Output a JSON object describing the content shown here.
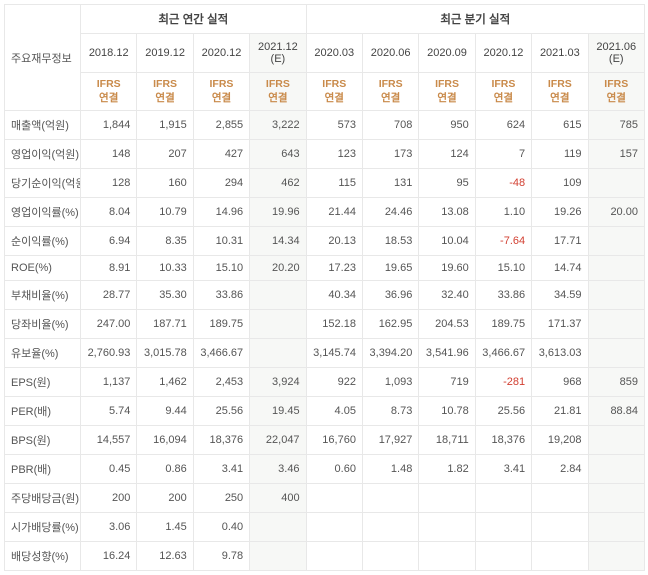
{
  "headers": {
    "rowLabel": "주요재무정보",
    "annual": "최근 연간 실적",
    "quarterly": "최근 분기 실적",
    "ifrs": "IFRS\n연결"
  },
  "periods": {
    "annual": [
      "2018.12",
      "2019.12",
      "2020.12",
      "2021.12 (E)"
    ],
    "quarterly": [
      "2020.03",
      "2020.06",
      "2020.09",
      "2020.12",
      "2021.03",
      "2021.06 (E)"
    ]
  },
  "estimateCols": [
    3,
    9
  ],
  "colors": {
    "ifrs": "#c98a4a",
    "negative": "#d23f31",
    "border": "#e8e8e8",
    "text": "#555555",
    "estBg": "#f7f8f6"
  },
  "typography": {
    "body_fontsize": 11,
    "ifrs_fontsize": 10.5,
    "header_fontsize": 11.5
  },
  "rows": [
    {
      "label": "매출액(억원)",
      "v": [
        "1,844",
        "1,915",
        "2,855",
        "3,222",
        "573",
        "708",
        "950",
        "624",
        "615",
        "785"
      ]
    },
    {
      "label": "영업이익(억원)",
      "v": [
        "148",
        "207",
        "427",
        "643",
        "123",
        "173",
        "124",
        "7",
        "119",
        "157"
      ]
    },
    {
      "label": "당기순이익(억원)",
      "v": [
        "128",
        "160",
        "294",
        "462",
        "115",
        "131",
        "95",
        "-48",
        "109",
        ""
      ]
    },
    {
      "label": "영업이익률(%)",
      "v": [
        "8.04",
        "10.79",
        "14.96",
        "19.96",
        "21.44",
        "24.46",
        "13.08",
        "1.10",
        "19.26",
        "20.00"
      ]
    },
    {
      "label": "순이익률(%)",
      "v": [
        "6.94",
        "8.35",
        "10.31",
        "14.34",
        "20.13",
        "18.53",
        "10.04",
        "-7.64",
        "17.71",
        ""
      ]
    },
    {
      "label": "ROE(%)",
      "v": [
        "8.91",
        "10.33",
        "15.10",
        "20.20",
        "17.23",
        "19.65",
        "19.60",
        "15.10",
        "14.74",
        ""
      ]
    },
    {
      "label": "부채비율(%)",
      "v": [
        "28.77",
        "35.30",
        "33.86",
        "",
        "40.34",
        "36.96",
        "32.40",
        "33.86",
        "34.59",
        ""
      ]
    },
    {
      "label": "당좌비율(%)",
      "v": [
        "247.00",
        "187.71",
        "189.75",
        "",
        "152.18",
        "162.95",
        "204.53",
        "189.75",
        "171.37",
        ""
      ]
    },
    {
      "label": "유보율(%)",
      "v": [
        "2,760.93",
        "3,015.78",
        "3,466.67",
        "",
        "3,145.74",
        "3,394.20",
        "3,541.96",
        "3,466.67",
        "3,613.03",
        ""
      ]
    },
    {
      "label": "EPS(원)",
      "v": [
        "1,137",
        "1,462",
        "2,453",
        "3,924",
        "922",
        "1,093",
        "719",
        "-281",
        "968",
        "859"
      ]
    },
    {
      "label": "PER(배)",
      "v": [
        "5.74",
        "9.44",
        "25.56",
        "19.45",
        "4.05",
        "8.73",
        "10.78",
        "25.56",
        "21.81",
        "88.84"
      ]
    },
    {
      "label": "BPS(원)",
      "v": [
        "14,557",
        "16,094",
        "18,376",
        "22,047",
        "16,760",
        "17,927",
        "18,711",
        "18,376",
        "19,208",
        ""
      ]
    },
    {
      "label": "PBR(배)",
      "v": [
        "0.45",
        "0.86",
        "3.41",
        "3.46",
        "0.60",
        "1.48",
        "1.82",
        "3.41",
        "2.84",
        ""
      ]
    },
    {
      "label": "주당배당금(원)",
      "v": [
        "200",
        "200",
        "250",
        "400",
        "",
        "",
        "",
        "",
        "",
        ""
      ]
    },
    {
      "label": "시가배당률(%)",
      "v": [
        "3.06",
        "1.45",
        "0.40",
        "",
        "",
        "",
        "",
        "",
        "",
        ""
      ]
    },
    {
      "label": "배당성향(%)",
      "v": [
        "16.24",
        "12.63",
        "9.78",
        "",
        "",
        "",
        "",
        "",
        "",
        ""
      ]
    }
  ]
}
